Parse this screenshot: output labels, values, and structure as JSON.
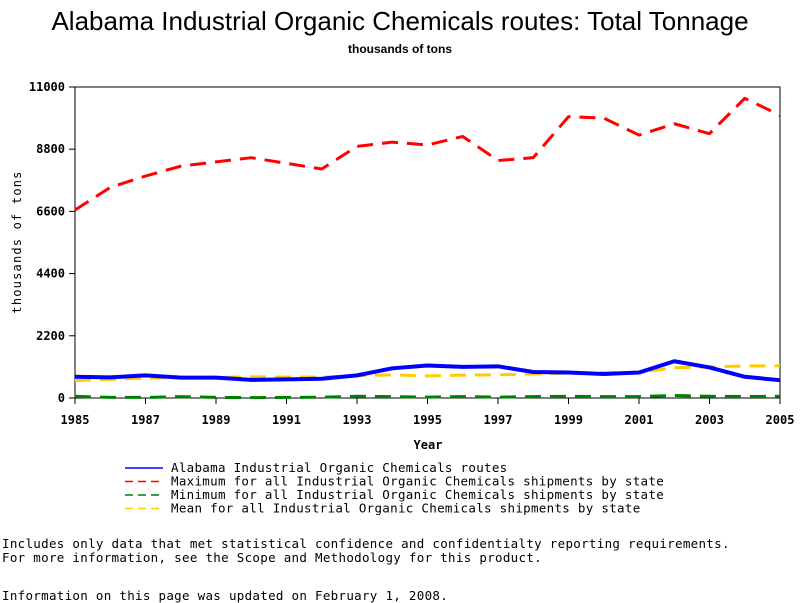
{
  "chart_data": {
    "type": "line",
    "title": "Alabama Industrial Organic Chemicals routes: Total Tonnage",
    "subtitle": "thousands of tons",
    "xlabel": "Year",
    "ylabel": "thousands of tons",
    "xlim": [
      1985,
      2005
    ],
    "ylim": [
      0,
      11000
    ],
    "x_ticks": [
      1985,
      1987,
      1989,
      1991,
      1993,
      1995,
      1997,
      1999,
      2001,
      2003,
      2005
    ],
    "y_ticks": [
      0,
      2200,
      4400,
      6600,
      8800,
      11000
    ],
    "x": [
      1985,
      1986,
      1987,
      1988,
      1989,
      1990,
      1991,
      1992,
      1993,
      1994,
      1995,
      1996,
      1997,
      1998,
      1999,
      2000,
      2001,
      2002,
      2003,
      2004,
      2005
    ],
    "series": [
      {
        "name": "Alabama Industrial Organic Chemicals routes",
        "color": "#0000ff",
        "dash": "solid",
        "values": [
          750,
          730,
          800,
          720,
          720,
          640,
          660,
          680,
          800,
          1050,
          1150,
          1100,
          1120,
          920,
          900,
          850,
          900,
          1300,
          1080,
          750,
          630
        ]
      },
      {
        "name": "Maximum for all Industrial Organic Chemicals shipments by state",
        "color": "#ff0000",
        "dash": "dashed",
        "values": [
          6650,
          7450,
          7850,
          8200,
          8350,
          8500,
          8300,
          8100,
          8900,
          9050,
          8950,
          9250,
          8400,
          8500,
          9950,
          9900,
          9300,
          9700,
          9350,
          10600,
          10000
        ]
      },
      {
        "name": "Minimum for all Industrial Organic Chemicals shipments by state",
        "color": "#008000",
        "dash": "dashed",
        "values": [
          60,
          20,
          20,
          50,
          20,
          15,
          20,
          30,
          60,
          50,
          30,
          50,
          30,
          50,
          60,
          50,
          50,
          90,
          60,
          50,
          60
        ]
      },
      {
        "name": "Mean for all Industrial Organic Chemicals shipments by state",
        "color": "#ffcc00",
        "dash": "dashed",
        "values": [
          620,
          660,
          700,
          720,
          730,
          750,
          740,
          740,
          790,
          820,
          780,
          810,
          820,
          850,
          880,
          890,
          910,
          1070,
          1100,
          1130,
          1140
        ]
      }
    ],
    "grid": false,
    "legend_position": "bottom"
  },
  "notes": {
    "line1": "Includes only data that met statistical confidence and confidentialty reporting requirements.",
    "line2": "For more information, see the Scope and Methodology for this product.",
    "updated": "Information on this page was updated on February 1, 2008."
  }
}
